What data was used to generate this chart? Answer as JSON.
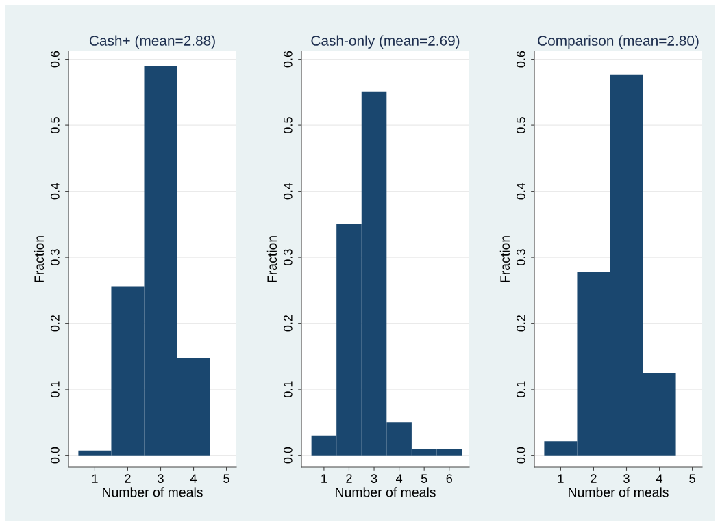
{
  "chart_data": [
    {
      "type": "histogram",
      "title": "Cash+ (mean=2.88)",
      "xlabel": "Number of meals",
      "ylabel": "Fraction",
      "bins": [
        0.5,
        1.5,
        2.5,
        3.5,
        4.5
      ],
      "values": [
        0.007,
        0.256,
        0.59,
        0.147
      ],
      "color": "#1a476f",
      "xlim": [
        0.2,
        5.3
      ],
      "xticks": [
        1,
        2,
        3,
        4,
        5
      ],
      "ylim": [
        -0.018,
        0.612
      ],
      "yticks": [
        {
          "value": 0,
          "label": "0.0"
        },
        {
          "value": 0.1,
          "label": "0.1"
        },
        {
          "value": 0.2,
          "label": "0.2"
        },
        {
          "value": 0.3,
          "label": "0.3"
        },
        {
          "value": 0.4,
          "label": "0.4"
        },
        {
          "value": 0.5,
          "label": "0.5"
        },
        {
          "value": 0.6,
          "label": "0.6"
        }
      ],
      "grid": "y"
    },
    {
      "type": "histogram",
      "title": "Cash-only (mean=2.69)",
      "xlabel": "Number of meals",
      "ylabel": "Fraction",
      "bins": [
        0.5,
        1.5,
        2.5,
        3.5,
        4.5,
        5.5,
        6.5
      ],
      "values": [
        0.03,
        0.351,
        0.551,
        0.05,
        0.009,
        0.009
      ],
      "color": "#1a476f",
      "xlim": [
        0.1,
        6.8
      ],
      "xticks": [
        1,
        2,
        3,
        4,
        5,
        6
      ],
      "ylim": [
        -0.018,
        0.612
      ],
      "yticks": [
        {
          "value": 0,
          "label": "0.0"
        },
        {
          "value": 0.1,
          "label": "0.1"
        },
        {
          "value": 0.2,
          "label": "0.2"
        },
        {
          "value": 0.3,
          "label": "0.3"
        },
        {
          "value": 0.4,
          "label": "0.4"
        },
        {
          "value": 0.5,
          "label": "0.5"
        },
        {
          "value": 0.6,
          "label": "0.6"
        }
      ],
      "grid": "y"
    },
    {
      "type": "histogram",
      "title": "Comparison (mean=2.80)",
      "xlabel": "Number of meals",
      "ylabel": "Fraction",
      "bins": [
        0.5,
        1.5,
        2.5,
        3.5,
        4.5
      ],
      "values": [
        0.021,
        0.278,
        0.577,
        0.124
      ],
      "color": "#1a476f",
      "xlim": [
        0.2,
        5.3
      ],
      "xticks": [
        1,
        2,
        3,
        4,
        5
      ],
      "ylim": [
        -0.018,
        0.612
      ],
      "yticks": [
        {
          "value": 0,
          "label": "0.0"
        },
        {
          "value": 0.1,
          "label": "0.1"
        },
        {
          "value": 0.2,
          "label": "0.2"
        },
        {
          "value": 0.3,
          "label": "0.3"
        },
        {
          "value": 0.4,
          "label": "0.4"
        },
        {
          "value": 0.5,
          "label": "0.5"
        },
        {
          "value": 0.6,
          "label": "0.6"
        }
      ],
      "grid": "y"
    }
  ]
}
